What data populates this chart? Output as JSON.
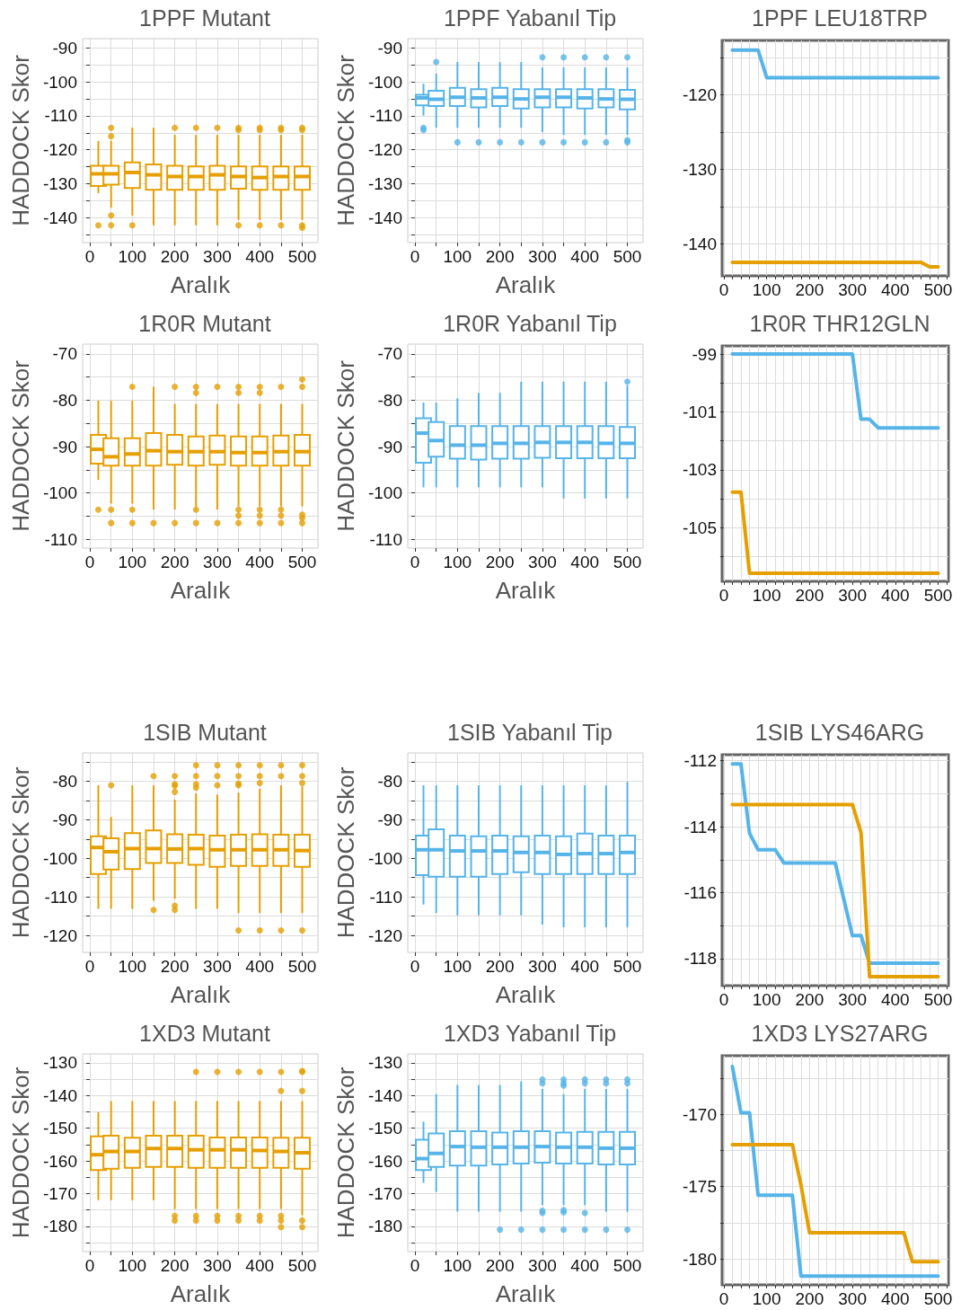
{
  "chart_data": [
    {
      "type": "box",
      "title": "1PPF Mutant",
      "xlabel": "Aralık",
      "ylabel": "HADDOCK Skor",
      "grid": true,
      "xlim": [
        -17,
        537
      ],
      "xticks": [
        0,
        100,
        200,
        300,
        400,
        500
      ],
      "ylim": [
        -147.4,
        -87.2
      ],
      "yticks": [
        -140,
        -130,
        -120,
        -110,
        -100,
        -90
      ],
      "x": [
        20,
        50,
        100,
        150,
        200,
        250,
        300,
        350,
        400,
        450,
        500
      ],
      "series": [
        {
          "color": "#e69f00",
          "boxes": [
            {
              "low": -132.8,
              "q1": -130.7,
              "median": -127.1,
              "q3": -124.7,
              "high": -117.4,
              "outliers": [
                -142.3
              ]
            },
            {
              "low": -137.1,
              "q1": -130.3,
              "median": -127.1,
              "q3": -124.7,
              "high": -117.4,
              "outliers": [
                -113.5,
                -116,
                -139.4,
                -142.3
              ]
            },
            {
              "low": -139.4,
              "q1": -131.3,
              "median": -126.7,
              "q3": -123.7,
              "high": -113.5,
              "outliers": [
                -142.3
              ]
            },
            {
              "low": -142.3,
              "q1": -131.8,
              "median": -127.4,
              "q3": -124.3,
              "high": -113.5
            },
            {
              "low": -142.3,
              "q1": -131.8,
              "median": -127.9,
              "q3": -124.7,
              "high": -115.6,
              "outliers": [
                -113.5
              ]
            },
            {
              "low": -142.3,
              "q1": -131.8,
              "median": -127.9,
              "q3": -124.9,
              "high": -115.6,
              "outliers": [
                -113.5
              ]
            },
            {
              "low": -142.3,
              "q1": -131.8,
              "median": -127.4,
              "q3": -124.7,
              "high": -115.6,
              "outliers": [
                -113.5
              ]
            },
            {
              "low": -140.7,
              "q1": -131.5,
              "median": -127.9,
              "q3": -124.9,
              "high": -115.6,
              "outliers": [
                -113.5,
                -114.2,
                -142.3
              ]
            },
            {
              "low": -140.7,
              "q1": -131.8,
              "median": -128.2,
              "q3": -124.9,
              "high": -115.6,
              "outliers": [
                -113.5,
                -114.2,
                -142.3
              ]
            },
            {
              "low": -140.7,
              "q1": -131.8,
              "median": -127.9,
              "q3": -124.9,
              "high": -115.6,
              "outliers": [
                -113.5,
                -114.2,
                -142.3
              ]
            },
            {
              "low": -140.7,
              "q1": -131.8,
              "median": -127.9,
              "q3": -124.9,
              "high": -115.6,
              "outliers": [
                -113.5,
                -114.2,
                -142.3,
                -143
              ]
            }
          ]
        }
      ]
    },
    {
      "type": "box",
      "title": "1PPF Yabanıl Tip",
      "xlabel": "Aralık",
      "ylabel": "HADDOCK Skor",
      "grid": true,
      "xlim": [
        -17,
        537
      ],
      "xticks": [
        0,
        100,
        200,
        300,
        400,
        500
      ],
      "ylim": [
        -147.4,
        -87.2
      ],
      "yticks": [
        -140,
        -130,
        -120,
        -110,
        -100,
        -90
      ],
      "x": [
        20,
        50,
        100,
        150,
        200,
        250,
        300,
        350,
        400,
        450,
        500
      ],
      "series": [
        {
          "color": "#56b4e9",
          "boxes": [
            {
              "low": -109.9,
              "q1": -106.9,
              "median": -104.7,
              "q3": -103.8,
              "high": -100.5,
              "outliers": [
                -113.5,
                -114.2
              ]
            },
            {
              "low": -113.5,
              "q1": -107.1,
              "median": -105.1,
              "q3": -102.6,
              "high": -97.5,
              "outliers": [
                -94.1
              ]
            },
            {
              "low": -113.5,
              "q1": -107.1,
              "median": -104.5,
              "q3": -101.7,
              "high": -94.1,
              "outliers": [
                -117.8
              ]
            },
            {
              "low": -113.5,
              "q1": -107.5,
              "median": -104.7,
              "q3": -102.1,
              "high": -94.1,
              "outliers": [
                -117.8
              ]
            },
            {
              "low": -113.5,
              "q1": -107.1,
              "median": -104.5,
              "q3": -101.7,
              "high": -94.1,
              "outliers": [
                -117.8
              ]
            },
            {
              "low": -113.5,
              "q1": -107.8,
              "median": -105,
              "q3": -102.1,
              "high": -94.1,
              "outliers": [
                -117.8
              ]
            },
            {
              "low": -114.8,
              "q1": -107.5,
              "median": -104.5,
              "q3": -102.1,
              "high": -95.7,
              "outliers": [
                -92.7,
                -117.8
              ]
            },
            {
              "low": -115.6,
              "q1": -107.5,
              "median": -104.5,
              "q3": -102.1,
              "high": -95.7,
              "outliers": [
                -92.7,
                -117.8
              ]
            },
            {
              "low": -115.6,
              "q1": -107.8,
              "median": -104.7,
              "q3": -102.1,
              "high": -95.7,
              "outliers": [
                -92.7,
                -117.8
              ]
            },
            {
              "low": -115.6,
              "q1": -107.5,
              "median": -105,
              "q3": -102.1,
              "high": -95.7,
              "outliers": [
                -92.7,
                -117.8
              ]
            },
            {
              "low": -115.6,
              "q1": -108.1,
              "median": -105.1,
              "q3": -102.3,
              "high": -95.7,
              "outliers": [
                -92.7,
                -117.2,
                -117.8
              ]
            }
          ]
        }
      ]
    },
    {
      "type": "line",
      "title": "1PPF LEU18TRP",
      "grid": true,
      "xlim": [
        -4,
        524
      ],
      "xticks": [
        0,
        100,
        200,
        300,
        400,
        500
      ],
      "ylim": [
        -144.3,
        -112.7
      ],
      "yticks": [
        -140,
        -130,
        -120
      ],
      "series": [
        {
          "color": "#56b4e9",
          "x": [
            20,
            80,
            100,
            500
          ],
          "values": [
            -114,
            -114,
            -117.7,
            -117.7
          ]
        },
        {
          "color": "#e69f00",
          "x": [
            20,
            460,
            480,
            500
          ],
          "values": [
            -142.5,
            -142.5,
            -143.1,
            -143.1
          ]
        }
      ]
    },
    {
      "type": "box",
      "title": "1R0R Mutant",
      "xlabel": "Aralık",
      "ylabel": "HADDOCK Skor",
      "grid": true,
      "xlim": [
        -17,
        537
      ],
      "xticks": [
        0,
        100,
        200,
        300,
        400,
        500
      ],
      "ylim": [
        -111.9,
        -67.9
      ],
      "yticks": [
        -110,
        -100,
        -90,
        -80,
        -70
      ],
      "x": [
        20,
        50,
        100,
        150,
        200,
        250,
        300,
        350,
        400,
        450,
        500
      ],
      "series": [
        {
          "color": "#e69f00",
          "boxes": [
            {
              "low": -97.2,
              "q1": -93.7,
              "median": -90.6,
              "q3": -87.5,
              "high": -80.1,
              "outliers": [
                -103.6
              ]
            },
            {
              "low": -102.3,
              "q1": -94.1,
              "median": -92.2,
              "q3": -88.2,
              "high": -80.1,
              "outliers": [
                -103.6,
                -106.5
              ]
            },
            {
              "low": -102.3,
              "q1": -94.1,
              "median": -91.6,
              "q3": -88.2,
              "high": -80.1,
              "outliers": [
                -77.1,
                -103.6,
                -106.5
              ]
            },
            {
              "low": -103.6,
              "q1": -94.1,
              "median": -90.9,
              "q3": -87.1,
              "high": -77.1,
              "outliers": [
                -106.5
              ]
            },
            {
              "low": -103.6,
              "q1": -93.9,
              "median": -91.1,
              "q3": -87.5,
              "high": -80.8,
              "outliers": [
                -77.1,
                -106.5
              ]
            },
            {
              "low": -103.1,
              "q1": -94.1,
              "median": -91.1,
              "q3": -87.8,
              "high": -80.8,
              "outliers": [
                -77.1,
                -78.4,
                -103.6,
                -106.5
              ]
            },
            {
              "low": -103.6,
              "q1": -93.9,
              "median": -91.1,
              "q3": -87.6,
              "high": -80.8,
              "outliers": [
                -77.1,
                -106.5
              ]
            },
            {
              "low": -102.9,
              "q1": -94.1,
              "median": -91.3,
              "q3": -87.8,
              "high": -80.8,
              "outliers": [
                -77.1,
                -78.4,
                -103.6,
                -104.9,
                -106.5
              ]
            },
            {
              "low": -102.9,
              "q1": -94.1,
              "median": -91.3,
              "q3": -87.8,
              "high": -80.8,
              "outliers": [
                -77.1,
                -78.4,
                -103.6,
                -104.9,
                -106.5
              ]
            },
            {
              "low": -102.9,
              "q1": -94.1,
              "median": -91.1,
              "q3": -87.6,
              "high": -80.8,
              "outliers": [
                -77.1,
                -103.6,
                -104.9,
                -106.5
              ]
            },
            {
              "low": -102.9,
              "q1": -94.1,
              "median": -91.1,
              "q3": -87.5,
              "high": -80.8,
              "outliers": [
                -75.5,
                -77.1,
                -104.7,
                -105.4,
                -106.5
              ]
            }
          ]
        }
      ]
    },
    {
      "type": "box",
      "title": "1R0R Yabanıl Tip",
      "xlabel": "Aralık",
      "ylabel": "HADDOCK Skor",
      "grid": true,
      "xlim": [
        -17,
        537
      ],
      "xticks": [
        0,
        100,
        200,
        300,
        400,
        500
      ],
      "ylim": [
        -111.9,
        -67.9
      ],
      "yticks": [
        -110,
        -100,
        -90,
        -80,
        -70
      ],
      "x": [
        20,
        50,
        100,
        150,
        200,
        250,
        300,
        350,
        400,
        450,
        500
      ],
      "series": [
        {
          "color": "#56b4e9",
          "boxes": [
            {
              "low": -98.8,
              "q1": -93.5,
              "median": -87.1,
              "q3": -83.9,
              "high": -80.5
            },
            {
              "low": -98.8,
              "q1": -92.2,
              "median": -88.7,
              "q3": -84.7,
              "high": -80.5
            },
            {
              "low": -98.8,
              "q1": -92.6,
              "median": -89.7,
              "q3": -85.6,
              "high": -79.6
            },
            {
              "low": -98.8,
              "q1": -92.8,
              "median": -89.7,
              "q3": -85.6,
              "high": -78.4
            },
            {
              "low": -98.8,
              "q1": -92.6,
              "median": -89.3,
              "q3": -85.6,
              "high": -78.4
            },
            {
              "low": -98.8,
              "q1": -92.6,
              "median": -89.3,
              "q3": -85.6,
              "high": -76
            },
            {
              "low": -98.8,
              "q1": -92.4,
              "median": -89.1,
              "q3": -85.6,
              "high": -76
            },
            {
              "low": -101.2,
              "q1": -92.5,
              "median": -89.1,
              "q3": -85.6,
              "high": -76
            },
            {
              "low": -101.2,
              "q1": -92.5,
              "median": -89.1,
              "q3": -85.6,
              "high": -76
            },
            {
              "low": -101.2,
              "q1": -92.5,
              "median": -89.3,
              "q3": -85.6,
              "high": -76
            },
            {
              "low": -101.2,
              "q1": -92.5,
              "median": -89.3,
              "q3": -85.8,
              "high": -76.8,
              "outliers": [
                -76
              ]
            }
          ]
        }
      ]
    },
    {
      "type": "line",
      "title": "1R0R THR12GLN",
      "grid": true,
      "xlim": [
        -4,
        524
      ],
      "xticks": [
        0,
        100,
        200,
        300,
        400,
        500
      ],
      "ylim": [
        -106.85,
        -98.72
      ],
      "yticks": [
        -105,
        -103,
        -101,
        -99
      ],
      "series": [
        {
          "color": "#56b4e9",
          "x": [
            20,
            300,
            320,
            340,
            360,
            500
          ],
          "values": [
            -99,
            -99,
            -101.25,
            -101.25,
            -101.55,
            -101.55
          ]
        },
        {
          "color": "#e69f00",
          "x": [
            20,
            40,
            60,
            500
          ],
          "values": [
            -103.77,
            -103.77,
            -106.57,
            -106.57
          ]
        }
      ]
    },
    {
      "type": "box",
      "title": "1SIB Mutant",
      "xlabel": "Aralık",
      "ylabel": "HADDOCK Skor",
      "grid": true,
      "xlim": [
        -17,
        537
      ],
      "xticks": [
        0,
        100,
        200,
        300,
        400,
        500
      ],
      "ylim": [
        -124.4,
        -72.7
      ],
      "yticks": [
        -120,
        -110,
        -100,
        -90,
        -80
      ],
      "x": [
        20,
        50,
        100,
        150,
        200,
        250,
        300,
        350,
        400,
        450,
        500
      ],
      "series": [
        {
          "color": "#e69f00",
          "boxes": [
            {
              "low": -113.1,
              "q1": -104.1,
              "median": -97.2,
              "q3": -94.3,
              "high": -81.1
            },
            {
              "low": -113.1,
              "q1": -102.9,
              "median": -98.3,
              "q3": -94.8,
              "high": -89.3,
              "outliers": [
                -81.1
              ]
            },
            {
              "low": -113.1,
              "q1": -102.8,
              "median": -97.5,
              "q3": -93.5,
              "high": -81.1
            },
            {
              "low": -111,
              "q1": -101.2,
              "median": -97.5,
              "q3": -92.8,
              "high": -81.1,
              "outliers": [
                -78.7,
                -113.4
              ]
            },
            {
              "low": -110.5,
              "q1": -101.2,
              "median": -97.6,
              "q3": -93.8,
              "high": -84.8,
              "outliers": [
                -78.7,
                -80.8,
                -81.2,
                -82.8,
                -112.3,
                -113.4
              ]
            },
            {
              "low": -113.1,
              "q1": -101.7,
              "median": -97.5,
              "q3": -93.9,
              "high": -83.2,
              "outliers": [
                -75.9,
                -78.7,
                -80.8,
                -81.7
              ]
            },
            {
              "low": -113.1,
              "q1": -102.2,
              "median": -97.8,
              "q3": -94.1,
              "high": -83.5,
              "outliers": [
                -75.9,
                -78.7,
                -81.1
              ]
            },
            {
              "low": -114.2,
              "q1": -102,
              "median": -97.8,
              "q3": -93.9,
              "high": -83,
              "outliers": [
                -75.9,
                -78.7,
                -80.6,
                -81.1,
                -118.7
              ]
            },
            {
              "low": -114.2,
              "q1": -102,
              "median": -97.8,
              "q3": -93.8,
              "high": -82,
              "outliers": [
                -75.9,
                -78.7,
                -80.5,
                -118.7
              ]
            },
            {
              "low": -114.2,
              "q1": -102,
              "median": -97.8,
              "q3": -93.9,
              "high": -81.1,
              "outliers": [
                -75.9,
                -78.7,
                -118.7
              ]
            },
            {
              "low": -114.2,
              "q1": -102.2,
              "median": -98,
              "q3": -93.9,
              "high": -81.4,
              "outliers": [
                -75.9,
                -78.7,
                -80.5,
                -118.7
              ]
            }
          ]
        }
      ]
    },
    {
      "type": "box",
      "title": "1SIB Yabanıl Tip",
      "xlabel": "Aralık",
      "ylabel": "HADDOCK Skor",
      "grid": true,
      "xlim": [
        -17,
        537
      ],
      "xticks": [
        0,
        100,
        200,
        300,
        400,
        500
      ],
      "ylim": [
        -124.4,
        -72.7
      ],
      "yticks": [
        -120,
        -110,
        -100,
        -90,
        -80
      ],
      "x": [
        20,
        50,
        100,
        150,
        200,
        250,
        300,
        350,
        400,
        450,
        500
      ],
      "series": [
        {
          "color": "#56b4e9",
          "boxes": [
            {
              "low": -112,
              "q1": -104.4,
              "median": -97.8,
              "q3": -94.1,
              "high": -81.1
            },
            {
              "low": -114.2,
              "q1": -104.8,
              "median": -97.8,
              "q3": -92.5,
              "high": -81.1
            },
            {
              "low": -114.8,
              "q1": -104.8,
              "median": -98.1,
              "q3": -94.1,
              "high": -81.1
            },
            {
              "low": -114.8,
              "q1": -104.8,
              "median": -98.1,
              "q3": -94.3,
              "high": -81.1
            },
            {
              "low": -114.8,
              "q1": -104.1,
              "median": -98.1,
              "q3": -94.1,
              "high": -81.1
            },
            {
              "low": -114.8,
              "q1": -103.6,
              "median": -98.5,
              "q3": -94.3,
              "high": -81.1
            },
            {
              "low": -117.2,
              "q1": -104.1,
              "median": -98.5,
              "q3": -94.1,
              "high": -81.1
            },
            {
              "low": -117.9,
              "q1": -104.1,
              "median": -99,
              "q3": -94.3,
              "high": -81.1
            },
            {
              "low": -117.9,
              "q1": -104.1,
              "median": -98.8,
              "q3": -93.6,
              "high": -81.1
            },
            {
              "low": -117.9,
              "q1": -104.1,
              "median": -98.8,
              "q3": -94.1,
              "high": -81.1
            },
            {
              "low": -117.9,
              "q1": -104.1,
              "median": -98.5,
              "q3": -94.1,
              "high": -80.2
            }
          ]
        }
      ]
    },
    {
      "type": "line",
      "title": "1SIB LYS46ARG",
      "grid": true,
      "xlim": [
        -4,
        524
      ],
      "xticks": [
        0,
        100,
        200,
        300,
        400,
        500
      ],
      "ylim": [
        -118.82,
        -111.82
      ],
      "yticks": [
        -118,
        -116,
        -114,
        -112
      ],
      "series": [
        {
          "color": "#56b4e9",
          "x": [
            20,
            40,
            60,
            80,
            120,
            140,
            260,
            300,
            320,
            340,
            500
          ],
          "values": [
            -112.1,
            -112.1,
            -114.2,
            -114.7,
            -114.7,
            -115.1,
            -115.1,
            -117.3,
            -117.3,
            -118.14,
            -118.14
          ]
        },
        {
          "color": "#e69f00",
          "x": [
            20,
            300,
            320,
            340,
            500
          ],
          "values": [
            -113.33,
            -113.33,
            -114.18,
            -118.55,
            -118.55
          ]
        }
      ]
    },
    {
      "type": "box",
      "title": "1XD3 Mutant",
      "xlabel": "Aralık",
      "ylabel": "HADDOCK Skor",
      "grid": true,
      "xlim": [
        -17,
        537
      ],
      "xticks": [
        0,
        100,
        200,
        300,
        400,
        500
      ],
      "ylim": [
        -187.7,
        -127.3
      ],
      "yticks": [
        -180,
        -170,
        -160,
        -150,
        -140,
        -130
      ],
      "x": [
        20,
        50,
        100,
        150,
        200,
        250,
        300,
        350,
        400,
        450,
        500
      ],
      "series": [
        {
          "color": "#e69f00",
          "boxes": [
            {
              "low": -172,
              "q1": -162.8,
              "median": -158.1,
              "q3": -152.5,
              "high": -145.1
            },
            {
              "low": -172,
              "q1": -162.4,
              "median": -157.1,
              "q3": -152.3,
              "high": -141.7
            },
            {
              "low": -172,
              "q1": -162.1,
              "median": -157.1,
              "q3": -152.9,
              "high": -141.7
            },
            {
              "low": -172,
              "q1": -161.8,
              "median": -156.2,
              "q3": -152.3,
              "high": -141.7
            },
            {
              "low": -174.7,
              "q1": -161.8,
              "median": -156.2,
              "q3": -152.3,
              "high": -141.7,
              "outliers": [
                -176.8,
                -178.2
              ]
            },
            {
              "low": -174.7,
              "q1": -162.1,
              "median": -156.6,
              "q3": -152.3,
              "high": -141.7,
              "outliers": [
                -132.8,
                -176.8,
                -178.2
              ]
            },
            {
              "low": -174.7,
              "q1": -162.1,
              "median": -156.6,
              "q3": -152.8,
              "high": -141.7,
              "outliers": [
                -132.8,
                -176.8,
                -178.2
              ]
            },
            {
              "low": -174.7,
              "q1": -162.1,
              "median": -156.6,
              "q3": -152.8,
              "high": -141.7,
              "outliers": [
                -132.8,
                -176.8,
                -178.2
              ]
            },
            {
              "low": -174.7,
              "q1": -162.1,
              "median": -156.8,
              "q3": -152.8,
              "high": -141.7,
              "outliers": [
                -132.8,
                -176.8,
                -178.2
              ]
            },
            {
              "low": -174.7,
              "q1": -162.1,
              "median": -157.1,
              "q3": -152.9,
              "high": -141.7,
              "outliers": [
                -132.8,
                -138.6,
                -176.8,
                -178.2,
                -180.2
              ]
            },
            {
              "low": -176.6,
              "q1": -162.4,
              "median": -157.5,
              "q3": -152.9,
              "high": -141.7,
              "outliers": [
                -132.5,
                -132.8,
                -138.6,
                -178.2,
                -180.2
              ]
            }
          ]
        }
      ]
    },
    {
      "type": "box",
      "title": "1XD3 Yabanıl Tip",
      "xlabel": "Aralık",
      "ylabel": "HADDOCK Skor",
      "grid": true,
      "xlim": [
        -17,
        537
      ],
      "xticks": [
        0,
        100,
        200,
        300,
        400,
        500
      ],
      "ylim": [
        -187.7,
        -127.3
      ],
      "yticks": [
        -180,
        -170,
        -160,
        -150,
        -140,
        -130
      ],
      "x": [
        20,
        50,
        100,
        150,
        200,
        250,
        300,
        350,
        400,
        450,
        500
      ],
      "series": [
        {
          "color": "#56b4e9",
          "boxes": [
            {
              "low": -166.7,
              "q1": -162.8,
              "median": -159.3,
              "q3": -153.5,
              "high": -148
            },
            {
              "low": -169.5,
              "q1": -161.8,
              "median": -157.7,
              "q3": -151.6,
              "high": -139.6
            },
            {
              "low": -175.5,
              "q1": -161.4,
              "median": -155.6,
              "q3": -150.9,
              "high": -136.8
            },
            {
              "low": -175.5,
              "q1": -161.4,
              "median": -155.8,
              "q3": -150.9,
              "high": -136.8
            },
            {
              "low": -175.5,
              "q1": -161.1,
              "median": -155.8,
              "q3": -151.3,
              "high": -136.8,
              "outliers": [
                -181
              ]
            },
            {
              "low": -175.5,
              "q1": -160.8,
              "median": -155.8,
              "q3": -150.9,
              "high": -135.7,
              "outliers": [
                -181
              ]
            },
            {
              "low": -173.5,
              "q1": -160.5,
              "median": -155.6,
              "q3": -150.9,
              "high": -138,
              "outliers": [
                -135.1,
                -136.3,
                -175.2,
                -175.9,
                -181
              ]
            },
            {
              "low": -173.5,
              "q1": -160.8,
              "median": -155.8,
              "q3": -151.3,
              "high": -139.6,
              "outliers": [
                -135.1,
                -136.3,
                -137,
                -175,
                -175.7,
                -181
              ]
            },
            {
              "low": -173.5,
              "q1": -160.8,
              "median": -155.8,
              "q3": -151.1,
              "high": -138,
              "outliers": [
                -135.1,
                -136.3,
                -175.9,
                -181
              ]
            },
            {
              "low": -175.5,
              "q1": -161.1,
              "median": -156.1,
              "q3": -151.1,
              "high": -138,
              "outliers": [
                -135.1,
                -136.3,
                -181
              ]
            },
            {
              "low": -175.5,
              "q1": -161.1,
              "median": -156.1,
              "q3": -151.1,
              "high": -138,
              "outliers": [
                -135.1,
                -136.3,
                -181
              ]
            }
          ]
        }
      ]
    },
    {
      "type": "line",
      "title": "1XD3 LYS27ARG",
      "grid": true,
      "xlim": [
        -4,
        524
      ],
      "xticks": [
        0,
        100,
        200,
        300,
        400,
        500
      ],
      "ylim": [
        -181.8,
        -165.95
      ],
      "yticks": [
        -180,
        -175,
        -170
      ],
      "series": [
        {
          "color": "#56b4e9",
          "x": [
            20,
            40,
            60,
            80,
            160,
            180,
            500
          ],
          "values": [
            -166.7,
            -169.9,
            -169.9,
            -175.6,
            -175.6,
            -181.2,
            -181.2
          ]
        },
        {
          "color": "#e69f00",
          "x": [
            20,
            160,
            180,
            200,
            420,
            440,
            500
          ],
          "values": [
            -172.1,
            -172.1,
            -174.9,
            -178.2,
            -178.2,
            -180.2,
            -180.2
          ]
        }
      ]
    }
  ]
}
